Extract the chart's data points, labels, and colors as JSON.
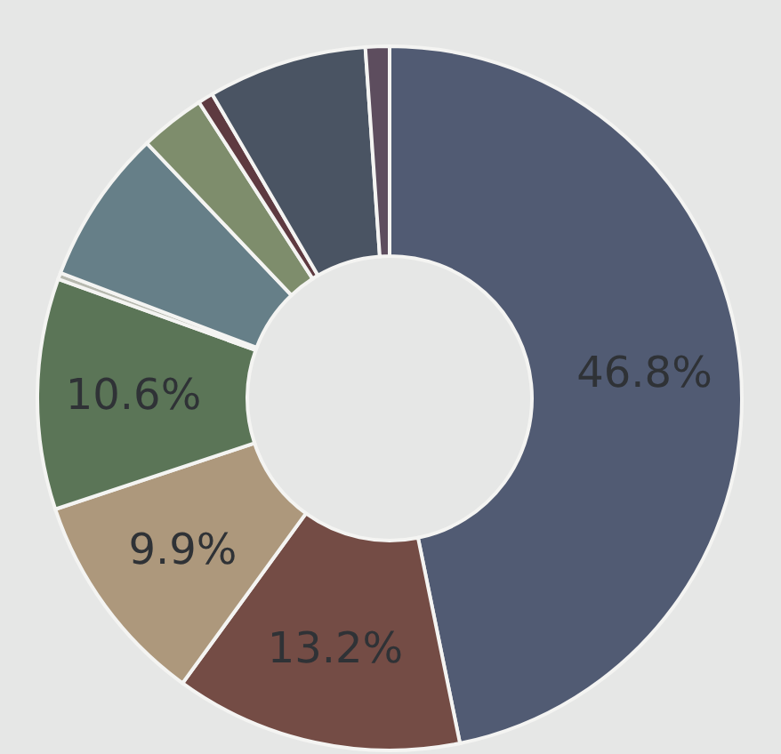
{
  "chart_data": {
    "type": "donut",
    "categories": [
      null,
      null,
      null,
      null,
      null,
      null,
      null,
      null,
      null,
      null
    ],
    "values": [
      46.8,
      13.2,
      9.9,
      10.6,
      0.3,
      7.1,
      3.0,
      0.7,
      7.3,
      1.1
    ],
    "colors": [
      "#515b73",
      "#744c45",
      "#ad987c",
      "#5b7557",
      "#b6b8ae",
      "#667f88",
      "#7e8d6c",
      "#5e3a40",
      "#4a5463",
      "#5d4d5e"
    ],
    "value_labels": [
      "46.8%",
      "13.2%",
      "9.9%",
      "10.6%",
      null,
      null,
      null,
      null,
      null,
      null
    ]
  }
}
